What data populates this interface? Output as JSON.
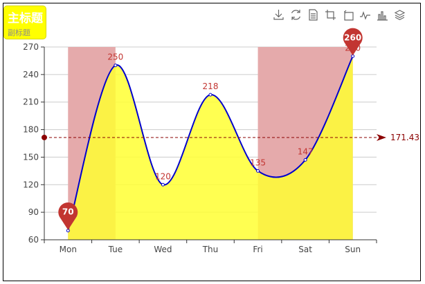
{
  "header": {
    "title": "主标题",
    "subtitle": "副标题"
  },
  "toolbox": {
    "icons": [
      "download-icon",
      "refresh-icon",
      "data-view-icon",
      "zoom-icon",
      "zoom-reset-icon",
      "line-chart-icon",
      "bar-chart-icon",
      "stack-icon"
    ]
  },
  "colors": {
    "area": "#ffff33",
    "line": "#0000cc",
    "markArea": "#e5aaab",
    "pin": "#c23531",
    "markLine": "#8b0000"
  },
  "chart_data": {
    "type": "line",
    "smooth": true,
    "area": true,
    "categories": [
      "Mon",
      "Tue",
      "Wed",
      "Thu",
      "Fri",
      "Sat",
      "Sun"
    ],
    "values": [
      70,
      250,
      120,
      218,
      135,
      147,
      260
    ],
    "data_labels": [
      "",
      "250",
      "120",
      "218",
      "135",
      "147",
      "260"
    ],
    "ylim": [
      60,
      270
    ],
    "yticks": [
      60,
      90,
      120,
      150,
      180,
      210,
      240,
      270
    ],
    "mark_points": [
      {
        "label": "70",
        "category": "Mon",
        "value": 70
      },
      {
        "label": "260",
        "category": "Sun",
        "value": 260
      }
    ],
    "mark_line": {
      "value": 171.43,
      "label": "171.43"
    },
    "mark_areas": [
      {
        "from": "Mon",
        "to": "Tue"
      },
      {
        "from": "Fri",
        "to": "Sun"
      }
    ],
    "grid": true
  }
}
